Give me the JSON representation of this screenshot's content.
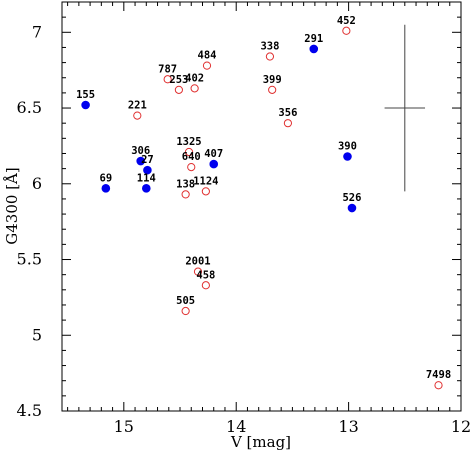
{
  "chart_data": {
    "type": "scatter",
    "title": "",
    "xlabel": "V [mag]",
    "ylabel": "G4300 [Å]",
    "xlim": [
      15.55,
      12.0
    ],
    "ylim": [
      4.5,
      7.2
    ],
    "x_reversed": true,
    "x_ticks": [
      15,
      14,
      13,
      12
    ],
    "y_ticks": [
      4.5,
      5,
      5.5,
      6,
      6.5,
      7
    ],
    "grid": false,
    "colors": {
      "filled": "#0000ee",
      "open": "#e03030",
      "axes": "#000000",
      "errorbar": "#444444"
    },
    "series": [
      {
        "marker": "filled-circle",
        "points": [
          {
            "label": "155",
            "x": 15.34,
            "y": 6.52
          },
          {
            "label": "69",
            "x": 15.16,
            "y": 5.97
          },
          {
            "label": "306",
            "x": 14.85,
            "y": 6.15
          },
          {
            "label": "27",
            "x": 14.79,
            "y": 6.09
          },
          {
            "label": "114",
            "x": 14.8,
            "y": 5.97
          },
          {
            "label": "407",
            "x": 14.2,
            "y": 6.13
          },
          {
            "label": "291",
            "x": 13.31,
            "y": 6.89
          },
          {
            "label": "390",
            "x": 13.01,
            "y": 6.18
          },
          {
            "label": "526",
            "x": 12.97,
            "y": 5.84
          }
        ]
      },
      {
        "marker": "open-circle",
        "points": [
          {
            "label": "452",
            "x": 13.02,
            "y": 7.01
          },
          {
            "label": "338",
            "x": 13.7,
            "y": 6.84
          },
          {
            "label": "484",
            "x": 14.26,
            "y": 6.78
          },
          {
            "label": "787",
            "x": 14.61,
            "y": 6.69
          },
          {
            "label": "253",
            "x": 14.51,
            "y": 6.62
          },
          {
            "label": "402",
            "x": 14.37,
            "y": 6.63
          },
          {
            "label": "399",
            "x": 13.68,
            "y": 6.62
          },
          {
            "label": "221",
            "x": 14.88,
            "y": 6.45
          },
          {
            "label": "356",
            "x": 13.54,
            "y": 6.4
          },
          {
            "label": "1325",
            "x": 14.42,
            "y": 6.21
          },
          {
            "label": "640",
            "x": 14.4,
            "y": 6.11
          },
          {
            "label": "138",
            "x": 14.45,
            "y": 5.93
          },
          {
            "label": "1124",
            "x": 14.27,
            "y": 5.95
          },
          {
            "label": "2001",
            "x": 14.34,
            "y": 5.42
          },
          {
            "label": "458",
            "x": 14.27,
            "y": 5.33
          },
          {
            "label": "505",
            "x": 14.45,
            "y": 5.16
          },
          {
            "label": "7498",
            "x": 12.2,
            "y": 4.67
          }
        ]
      }
    ],
    "error_bar": {
      "x": 12.5,
      "y": 6.5,
      "xerr": 0.18,
      "yerr": 0.55
    }
  }
}
